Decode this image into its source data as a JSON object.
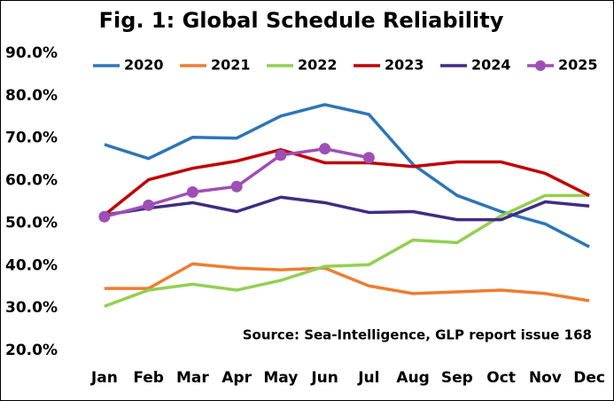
{
  "chart_data": {
    "type": "line",
    "title": "Fig. 1: Global Schedule Reliability",
    "annotation": "Source: Sea-Intelligence, GLP report issue 168",
    "categories": [
      "Jan",
      "Feb",
      "Mar",
      "Apr",
      "May",
      "Jun",
      "Jul",
      "Aug",
      "Sep",
      "Oct",
      "Nov",
      "Dec"
    ],
    "ylim": [
      20,
      90
    ],
    "yticks": [
      {
        "value": 20,
        "label": "20.0%"
      },
      {
        "value": 30,
        "label": "30.0%"
      },
      {
        "value": 40,
        "label": "40.0%"
      },
      {
        "value": 50,
        "label": "50.0%"
      },
      {
        "value": 60,
        "label": "60.0%"
      },
      {
        "value": 70,
        "label": "70.0%"
      },
      {
        "value": 80,
        "label": "80.0%"
      },
      {
        "value": 90,
        "label": "90.0%"
      }
    ],
    "legend": "top",
    "series": [
      {
        "name": "2020",
        "color": "#2e75b6",
        "values": [
          68.5,
          65.2,
          70.2,
          70,
          75.2,
          77.9,
          75.6,
          63.8,
          56.5,
          52.7,
          49.8,
          44.4
        ]
      },
      {
        "name": "2021",
        "color": "#ed7d31",
        "values": [
          34.6,
          34.6,
          40.4,
          39.4,
          39,
          39.4,
          35.2,
          33.4,
          33.8,
          34.2,
          33.4,
          31.7
        ]
      },
      {
        "name": "2022",
        "color": "#92d050",
        "values": [
          30.4,
          34.2,
          35.6,
          34.2,
          36.5,
          39.8,
          40.2,
          46,
          45.4,
          51.7,
          56.5,
          56.5
        ]
      },
      {
        "name": "2023",
        "color": "#c00000",
        "values": [
          51.9,
          60.2,
          62.9,
          64.6,
          67.3,
          64.2,
          64.2,
          63.3,
          64.4,
          64.4,
          61.7,
          56.5
        ]
      },
      {
        "name": "2024",
        "color": "#3f2d82",
        "values": [
          51.9,
          53.5,
          54.8,
          52.7,
          56.1,
          54.8,
          52.5,
          52.7,
          50.8,
          50.8,
          55,
          54
        ]
      },
      {
        "name": "2025",
        "color": "#9e4fb5",
        "markers": true,
        "values": [
          51.5,
          54.2,
          57.3,
          58.6,
          66,
          67.5,
          65.4,
          null,
          null,
          null,
          null,
          null
        ]
      }
    ]
  }
}
